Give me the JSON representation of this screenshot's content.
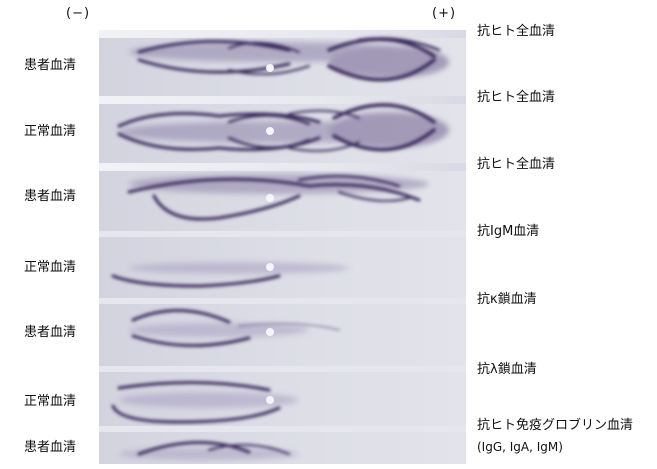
{
  "header": {
    "cathode_label": "(−)",
    "anode_label": "(+)"
  },
  "sample_labels": [
    "患者血清",
    "正常血清",
    "患者血清",
    "正常血清",
    "患者血清",
    "正常血清",
    "患者血清"
  ],
  "antiserum_labels": [
    "抗ヒト全血清",
    "抗ヒト全血清",
    "抗ヒト全血清",
    "抗IgM血清",
    "抗κ鎖血清",
    "抗λ鎖血清",
    "抗ヒト免疫グロブリン血清"
  ],
  "antiserum_sublabel": "(IgG, IgA, IgM)",
  "colors": {
    "gel": "#dcdde6",
    "trough": "#eeeff4",
    "precipitate": "#3a2c5c",
    "well": "#f4f5f8"
  },
  "icons": [
    "sample-well"
  ]
}
